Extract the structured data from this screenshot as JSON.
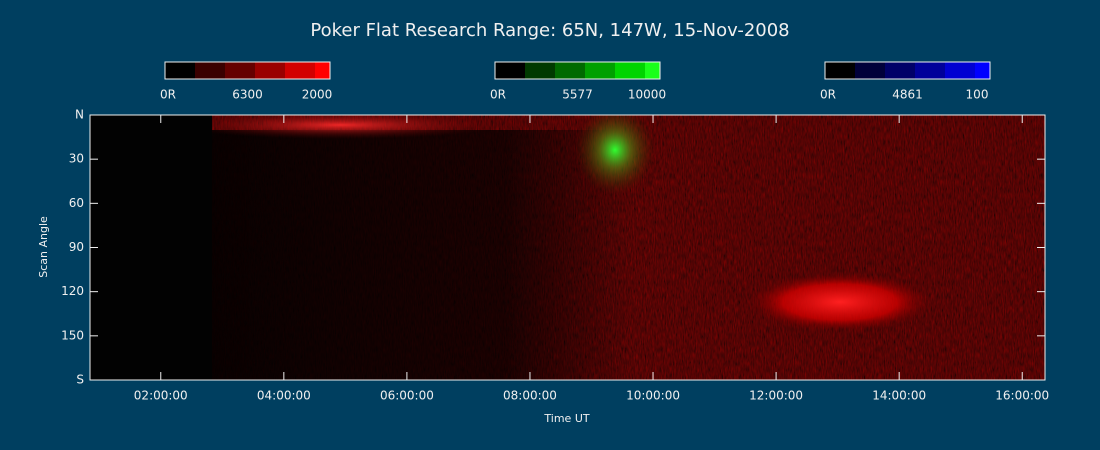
{
  "chart_data": {
    "type": "keogram",
    "title": "Poker Flat Research Range: 65N, 147W, 15-Nov-2008",
    "xlabel": "Time UT",
    "ylabel": "Scan Angle",
    "colorbars": [
      {
        "labels": [
          "0R",
          "6300",
          "2000"
        ],
        "colors": [
          "#000000",
          "#3a0000",
          "#650000",
          "#9a0000",
          "#d20000",
          "#ff0000"
        ]
      },
      {
        "labels": [
          "0R",
          "5577",
          "10000"
        ],
        "colors": [
          "#000000",
          "#003a00",
          "#006a00",
          "#00a000",
          "#00d400",
          "#1aff1a"
        ]
      },
      {
        "labels": [
          "0R",
          "4861",
          "100"
        ],
        "colors": [
          "#000000",
          "#00003a",
          "#000068",
          "#00009a",
          "#0000d2",
          "#0000ff"
        ]
      }
    ],
    "xlim": [
      0.85,
      16.37
    ],
    "xticks": [
      {
        "value": 2,
        "label": "02:00:00"
      },
      {
        "value": 4,
        "label": "04:00:00"
      },
      {
        "value": 6,
        "label": "06:00:00"
      },
      {
        "value": 8,
        "label": "08:00:00"
      },
      {
        "value": 10,
        "label": "10:00:00"
      },
      {
        "value": 12,
        "label": "12:00:00"
      },
      {
        "value": 14,
        "label": "14:00:00"
      },
      {
        "value": 16,
        "label": "16:00:00"
      }
    ],
    "ylim": [
      0,
      180
    ],
    "yticks": [
      {
        "value": 0,
        "label": "N"
      },
      30,
      60,
      90,
      120,
      150,
      {
        "value": 180,
        "label": "S"
      }
    ]
  }
}
